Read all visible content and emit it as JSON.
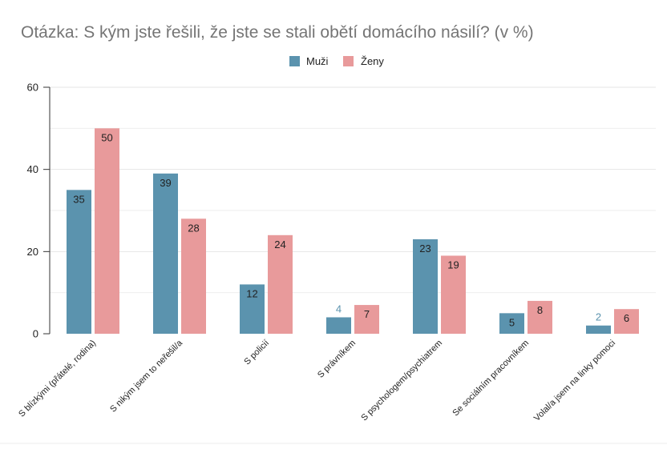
{
  "chart_data": {
    "type": "bar",
    "title": "Otázka: S kým jste řešili, že jste se stali obětí domácího násilí? (v %)",
    "xlabel": "",
    "ylabel": "",
    "ylim": [
      0,
      60
    ],
    "yticks": [
      0,
      20,
      40,
      60
    ],
    "grid": true,
    "legend_position": "top",
    "categories": [
      "S blízkými (přátelé, rodina)",
      "S nikým jsem to neřešil/a",
      "S policií",
      "S právníkem",
      "S psychologem/psychiatrem",
      "Se sociálním pracovníkem",
      "Volal/a jsem na linky pomoci"
    ],
    "series": [
      {
        "name": "Muži",
        "color": "#5b93ae",
        "values": [
          35,
          39,
          12,
          4,
          23,
          5,
          2
        ]
      },
      {
        "name": "Ženy",
        "color": "#e89a9b",
        "values": [
          50,
          28,
          24,
          7,
          19,
          8,
          6
        ]
      }
    ],
    "colors": {
      "title": "#757575",
      "grid": "#e6e6e6",
      "axis": "#333333",
      "outside_label": "#5b93ae",
      "inside_label": "#222222"
    }
  }
}
